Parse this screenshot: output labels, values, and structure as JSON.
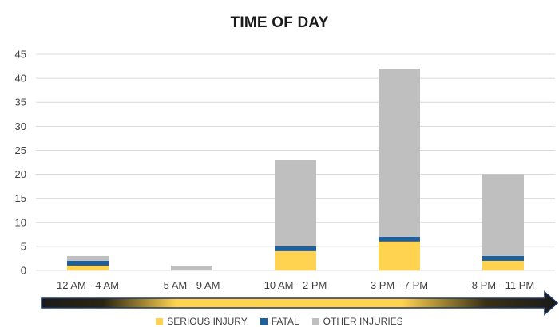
{
  "chart_data": {
    "type": "bar",
    "stacked": true,
    "title": "TIME OF DAY",
    "categories": [
      "12 AM - 4 AM",
      "5 AM - 9 AM",
      "10 AM - 2 PM",
      "3 PM - 7 PM",
      "8 PM - 11 PM"
    ],
    "series": [
      {
        "name": "SERIOUS INJURY",
        "color": "#FFD24F",
        "values": [
          1,
          0,
          4,
          6,
          2
        ]
      },
      {
        "name": "FATAL",
        "color": "#1F5F9E",
        "values": [
          1,
          0,
          1,
          1,
          1
        ]
      },
      {
        "name": "OTHER INJURIES",
        "color": "#BFBFBF",
        "values": [
          1,
          1,
          18,
          35,
          17
        ]
      }
    ],
    "ylim": [
      0,
      45
    ],
    "yticks": [
      0,
      5,
      10,
      15,
      20,
      25,
      30,
      35,
      40,
      45
    ],
    "grid": true,
    "legend_position": "bottom"
  }
}
